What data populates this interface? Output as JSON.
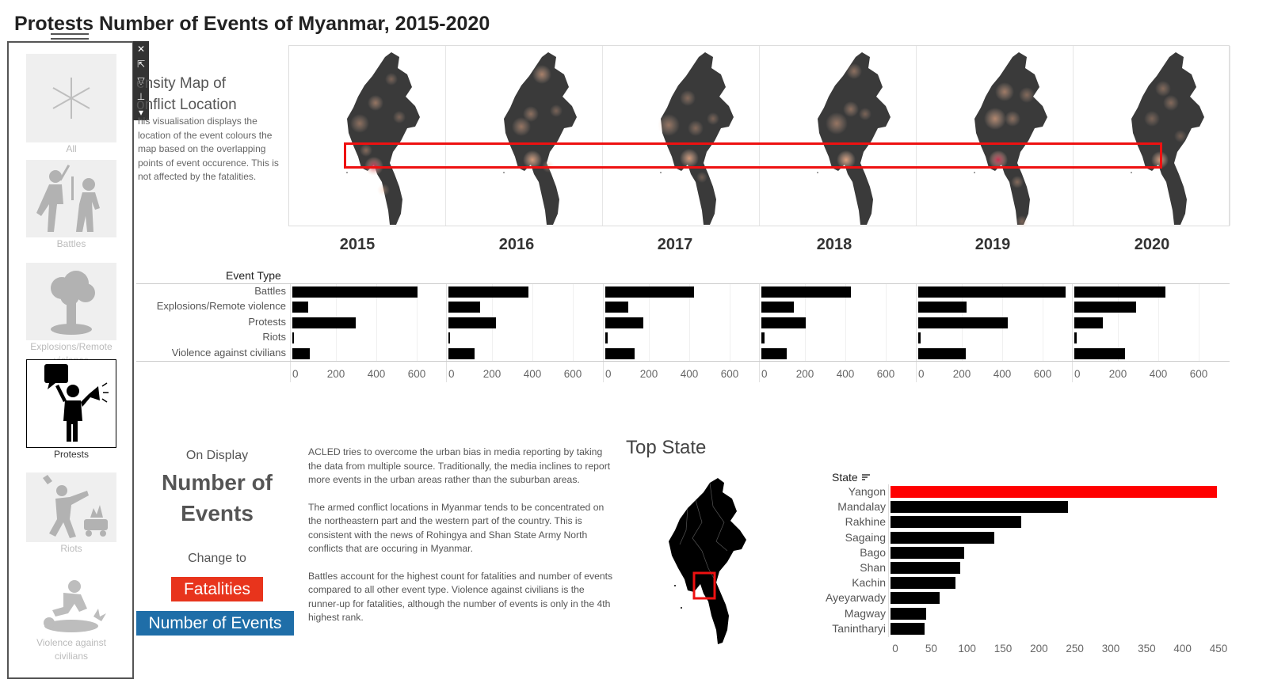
{
  "title": "Protests Number of Events of Myanmar, 2015-2020",
  "filters": [
    {
      "label": "All",
      "icon": "asterisk-icon",
      "state": "inactive"
    },
    {
      "label": "Battles",
      "icon": "battles-icon",
      "state": "inactive"
    },
    {
      "label": "Explosions/Remote violence",
      "icon": "explosion-icon",
      "state": "inactive"
    },
    {
      "label": "Protests",
      "icon": "protest-megaphone-icon",
      "state": "selected"
    },
    {
      "label": "Riots",
      "icon": "riots-icon",
      "state": "inactive"
    },
    {
      "label": "Violence against civilians",
      "icon": "violence-civilians-icon",
      "state": "inactive"
    }
  ],
  "toolbar": {
    "icons": [
      "close-icon",
      "popout-icon",
      "filter-icon",
      "pin-icon",
      "dropdown-icon"
    ]
  },
  "density_map": {
    "title_line1": "ensity Map of",
    "title_line2": "onflict Location",
    "description": "his visualisation displays the location of the event colours the map based on the overlapping points of event occurence. This is not affected by the fatalities."
  },
  "years": [
    "2015",
    "2016",
    "2017",
    "2018",
    "2019",
    "2020"
  ],
  "chart_data": [
    {
      "type": "bar",
      "title": "",
      "category_header": "Event Type",
      "categories": [
        "Battles",
        "Explosions/Remote violence",
        "Protests",
        "Riots",
        "Violence against civilians"
      ],
      "series": [
        {
          "name": "2015",
          "values": [
            620,
            80,
            315,
            8,
            88
          ]
        },
        {
          "name": "2016",
          "values": [
            395,
            155,
            235,
            0,
            130
          ]
        },
        {
          "name": "2017",
          "values": [
            440,
            115,
            190,
            12,
            145
          ]
        },
        {
          "name": "2018",
          "values": [
            445,
            160,
            220,
            15,
            125
          ]
        },
        {
          "name": "2019",
          "values": [
            730,
            240,
            445,
            12,
            235
          ]
        },
        {
          "name": "2020",
          "values": [
            450,
            305,
            140,
            10,
            250
          ]
        }
      ],
      "xticks": [
        "0",
        "200",
        "400",
        "600"
      ],
      "xlim": [
        0,
        760
      ]
    },
    {
      "type": "bar",
      "title": "Top State",
      "category_header": "State",
      "categories": [
        "Yangon",
        "Mandalay",
        "Rakhine",
        "Sagaing",
        "Bago",
        "Shan",
        "Kachin",
        "Ayeyarwady",
        "Magway",
        "Tanintharyi"
      ],
      "values": [
        435,
        236,
        174,
        138,
        98,
        93,
        87,
        65,
        48,
        45
      ],
      "highlight": "Yangon",
      "highlight_color": "#ff0000",
      "xticks": [
        "0",
        "50",
        "100",
        "150",
        "200",
        "250",
        "300",
        "350",
        "400",
        "450"
      ],
      "xlim": [
        0,
        450
      ]
    }
  ],
  "on_display": {
    "label": "On Display",
    "value_line1": "Number of",
    "value_line2": "Events"
  },
  "change_to": {
    "label": "Change to",
    "fatalities": "Fatalities",
    "events": "Number of Events"
  },
  "notes": [
    "ACLED tries to overcome the urban bias in media reporting by taking the data from multiple source. Traditionally, the media inclines to report more events in the urban areas rather than the suburban areas.",
    "The armed conflict locations in Myanmar tends to be concentrated on the northeastern part and the western part of the country. This is consistent with the news of Rohingya and Shan State Army North conflicts that are occuring in Myanmar.",
    "Battles account for the highest count for fatalities and number of events compared to all other event type. Violence against civilians is the runner-up for fatalities, although the number of events is only in the 4th highest rank."
  ],
  "colors": {
    "highlight": "#ff0000",
    "fatalities_btn": "#e8341c",
    "events_btn": "#1f6ea8",
    "map_fill": "#333333",
    "bar": "#000000"
  }
}
